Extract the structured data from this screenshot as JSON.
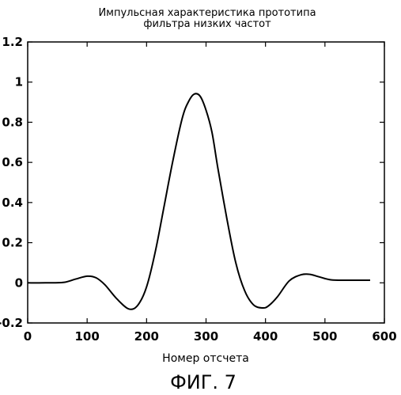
{
  "chart_data": {
    "type": "line",
    "title_lines": [
      "Импульсная характеристика прототипа",
      "фильтра низких частот"
    ],
    "xlabel": "Номер отсчета",
    "ylabel": "",
    "caption": "ФИГ. 7",
    "xlim": [
      0,
      600
    ],
    "ylim": [
      -0.2,
      1.2
    ],
    "x_ticks": [
      0,
      100,
      200,
      300,
      400,
      500,
      600
    ],
    "y_ticks": [
      -0.2,
      0,
      0.2,
      0.4,
      0.6,
      0.8,
      1,
      1.2
    ],
    "x_tick_labels": [
      "0",
      "100",
      "200",
      "300",
      "400",
      "500",
      "600"
    ],
    "y_tick_labels": [
      "-0.2",
      "0",
      "0.2",
      "0.4",
      "0.6",
      "0.8",
      "1",
      "1.2"
    ],
    "grid": false,
    "line_color": "#000000",
    "series": [
      {
        "x": [
          0,
          30,
          60,
          80,
          100,
          115,
          130,
          150,
          170,
          185,
          200,
          215,
          230,
          245,
          260,
          270,
          280,
          290,
          300,
          310,
          320,
          335,
          350,
          365,
          380,
          395,
          405,
          420,
          440,
          460,
          475,
          490,
          510,
          540,
          576
        ],
        "values": [
          0,
          0,
          0.002,
          0.018,
          0.033,
          0.025,
          -0.01,
          -0.08,
          -0.13,
          -0.112,
          -0.02,
          0.16,
          0.39,
          0.62,
          0.82,
          0.9,
          0.94,
          0.93,
          0.86,
          0.75,
          0.57,
          0.32,
          0.1,
          -0.04,
          -0.11,
          -0.125,
          -0.115,
          -0.07,
          0.01,
          0.04,
          0.042,
          0.03,
          0.015,
          0.013,
          0.013
        ]
      }
    ]
  }
}
